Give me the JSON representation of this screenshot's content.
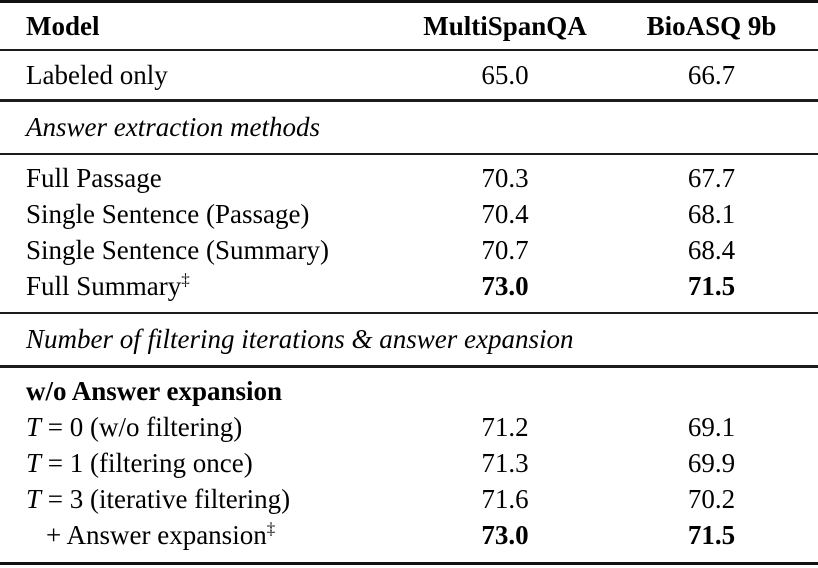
{
  "table": {
    "header": {
      "model": "Model",
      "multispanqa": "MultiSpanQA",
      "bioasq9b": "BioASQ 9b"
    },
    "sections": {
      "extraction": "Answer extraction methods",
      "filtering": "Number of filtering iterations & answer expansion"
    },
    "group_label": "w/o Answer expansion",
    "dagger": "‡",
    "rows": {
      "labeled_only": {
        "label": "Labeled only",
        "multispanqa": "65.0",
        "bioasq9b": "66.7"
      },
      "full_passage": {
        "label": "Full Passage",
        "multispanqa": "70.3",
        "bioasq9b": "67.7"
      },
      "single_sentence_passage": {
        "label": "Single Sentence (Passage)",
        "multispanqa": "70.4",
        "bioasq9b": "68.1"
      },
      "single_sentence_summary": {
        "label": "Single Sentence (Summary)",
        "multispanqa": "70.7",
        "bioasq9b": "68.4"
      },
      "full_summary": {
        "label": "Full Summary",
        "suffix": "‡",
        "multispanqa": "73.0",
        "bioasq9b": "71.5"
      },
      "t0": {
        "var": "T",
        "rest": "= 0 (w/o filtering)",
        "multispanqa": "71.2",
        "bioasq9b": "69.1"
      },
      "t1": {
        "var": "T",
        "rest": "= 1 (filtering once)",
        "multispanqa": "71.3",
        "bioasq9b": "69.9"
      },
      "t3": {
        "var": "T",
        "rest": "= 3 (iterative filtering)",
        "multispanqa": "71.6",
        "bioasq9b": "70.2"
      },
      "answer_expansion": {
        "label": "+ Answer expansion",
        "suffix": "‡",
        "multispanqa": "73.0",
        "bioasq9b": "71.5"
      }
    }
  }
}
